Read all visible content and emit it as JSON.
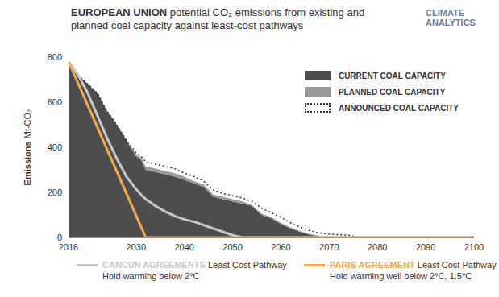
{
  "chart_data": {
    "type": "area",
    "title_bold": "EUROPEAN UNION",
    "title": "potential CO₂ emissions from existing and planned coal capacity against least-cost pathways",
    "logo": [
      "CLIMATE",
      "ANALYTICS"
    ],
    "ylabel": "Emissions",
    "ylabel_unit": "Mt-CO₂",
    "stacked": true,
    "legend": "top right",
    "xlim": [
      2016,
      2100
    ],
    "xticks": [
      2016,
      2030,
      2040,
      2050,
      2060,
      2070,
      2080,
      2090,
      2100
    ],
    "ylim": [
      0,
      800
    ],
    "yticks": [
      0,
      200,
      400,
      600,
      800
    ],
    "x": [
      2016,
      2018,
      2020,
      2022,
      2024,
      2026,
      2028,
      2030,
      2031,
      2032,
      2034,
      2036,
      2038,
      2040,
      2042,
      2044,
      2046,
      2048,
      2050,
      2052,
      2054,
      2056,
      2058,
      2060,
      2062,
      2064,
      2066,
      2068,
      2070,
      2072,
      2074,
      2076,
      2080,
      2090,
      2100
    ],
    "series": [
      {
        "name": "CURRENT COAL CAPACITY",
        "type": "area",
        "color": "#4d4d4d",
        "values": [
          780,
          720,
          680,
          640,
          560,
          500,
          430,
          360,
          345,
          300,
          290,
          280,
          270,
          255,
          240,
          225,
          180,
          170,
          160,
          150,
          140,
          100,
          85,
          60,
          40,
          25,
          12,
          5,
          0,
          0,
          0,
          0,
          0,
          0,
          0
        ]
      },
      {
        "name": "PLANNED COAL CAPACITY",
        "type": "area",
        "color": "#9a9a9a",
        "values": [
          0,
          0,
          0,
          0,
          0,
          0,
          0,
          10,
          10,
          15,
          15,
          15,
          15,
          15,
          10,
          10,
          10,
          10,
          10,
          10,
          5,
          5,
          5,
          5,
          5,
          3,
          3,
          2,
          0,
          0,
          0,
          0,
          0,
          0,
          0
        ]
      },
      {
        "name": "ANNOUNCED COAL CAPACITY",
        "type": "area",
        "color": "#333333",
        "line_style": "dotted",
        "values": [
          0,
          0,
          0,
          0,
          0,
          0,
          0,
          5,
          5,
          20,
          20,
          20,
          20,
          15,
          20,
          15,
          20,
          15,
          15,
          15,
          15,
          25,
          20,
          25,
          20,
          17,
          15,
          13,
          15,
          12,
          10,
          0,
          0,
          0,
          0
        ]
      },
      {
        "name": "CANCUN AGREEMENTS",
        "label": "Least Cost Pathway",
        "subtitle": "Hold warming below 2°C",
        "type": "line",
        "color": "#c8c8c8",
        "values": [
          780,
          720,
          640,
          540,
          440,
          350,
          270,
          215,
          190,
          170,
          140,
          115,
          95,
          80,
          70,
          55,
          40,
          25,
          10,
          0,
          0,
          0,
          0,
          0,
          0,
          0,
          0,
          0,
          0,
          0,
          0,
          0,
          0,
          0,
          0
        ]
      },
      {
        "name": "PARIS AGREEMENT",
        "label": "Least Cost Pathway",
        "subtitle": "Hold warming well below 2°C, 1.5°C",
        "type": "line",
        "color": "#f7a94a",
        "values": [
          780,
          683,
          585,
          488,
          390,
          293,
          195,
          98,
          49,
          0,
          0,
          0,
          0,
          0,
          0,
          0,
          0,
          0,
          0,
          0,
          0,
          0,
          0,
          0,
          0,
          0,
          0,
          0,
          0,
          0,
          0,
          0,
          0,
          0,
          0
        ]
      }
    ]
  }
}
